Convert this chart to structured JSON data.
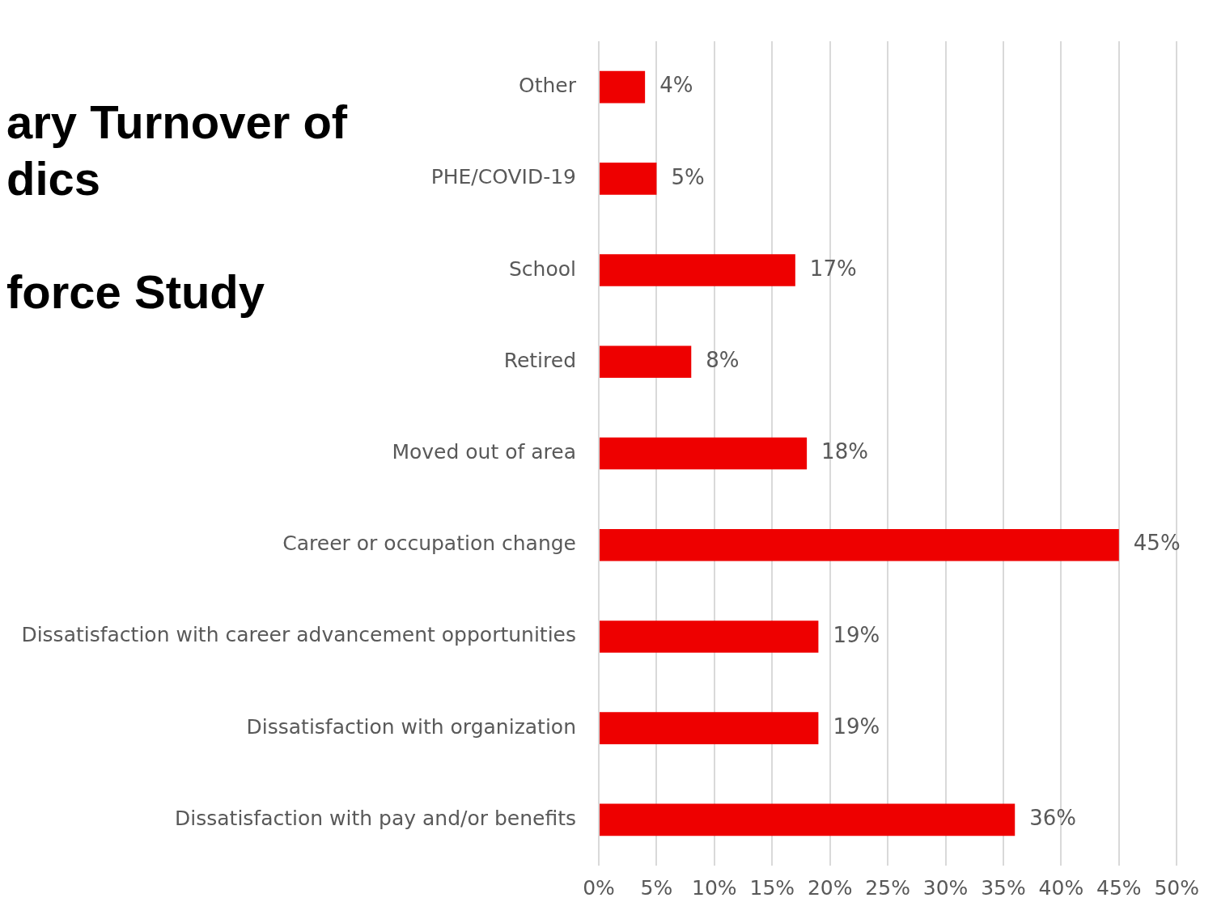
{
  "chart_data": {
    "type": "bar",
    "orientation": "horizontal",
    "title": "ary Turnover of\ndics\n\nforce Study",
    "categories": [
      "Other",
      "PHE/COVID-19",
      "School",
      "Retired",
      "Moved out of area",
      "Career or occupation change",
      "Dissatisfaction with career advancement opportunities",
      "Dissatisfaction with organization",
      "Dissatisfaction with pay and/or benefits"
    ],
    "values": [
      4,
      5,
      17,
      8,
      18,
      45,
      19,
      19,
      36
    ],
    "value_labels": [
      "4%",
      "5%",
      "17%",
      "8%",
      "18%",
      "45%",
      "19%",
      "19%",
      "36%"
    ],
    "color": "#ee0000",
    "xlim": [
      0,
      50
    ],
    "xticks": [
      {
        "value": 0,
        "label": "0%"
      },
      {
        "value": 5,
        "label": "5%"
      },
      {
        "value": 10,
        "label": "10%"
      },
      {
        "value": 15,
        "label": "15%"
      },
      {
        "value": 20,
        "label": "20%"
      },
      {
        "value": 25,
        "label": "25%"
      },
      {
        "value": 30,
        "label": "30%"
      },
      {
        "value": 35,
        "label": "35%"
      },
      {
        "value": 40,
        "label": "40%"
      },
      {
        "value": 45,
        "label": "45%"
      },
      {
        "value": 50,
        "label": "50%"
      }
    ],
    "grid": "x",
    "legend": false
  }
}
